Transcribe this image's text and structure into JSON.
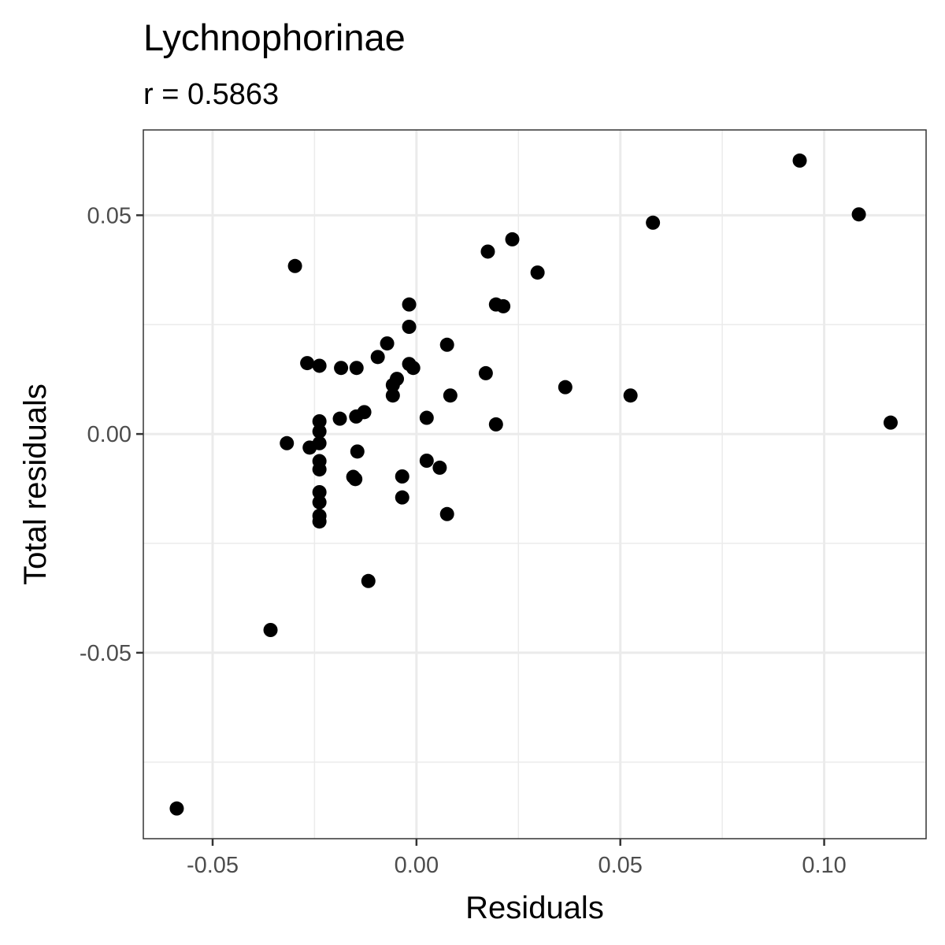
{
  "chart_data": {
    "type": "scatter",
    "title": "Lychnophorinae",
    "subtitle": "r = 0.5863",
    "xlabel": "Residuals",
    "ylabel": "Total residuals",
    "xlim": [
      -0.067,
      0.125
    ],
    "ylim": [
      -0.0925,
      0.0695
    ],
    "x_ticks": [
      -0.05,
      0.0,
      0.05,
      0.1
    ],
    "x_tick_labels": [
      "-0.05",
      "0.00",
      "0.05",
      "0.10"
    ],
    "y_ticks": [
      -0.05,
      0.0,
      0.05
    ],
    "y_tick_labels": [
      "-0.05",
      "0.00",
      "0.05"
    ],
    "x_minor": [
      -0.025,
      0.025,
      0.075
    ],
    "y_minor": [
      -0.075,
      -0.025,
      0.025
    ],
    "grid": true,
    "colors": {
      "point": "#000000",
      "panel_border": "#333333",
      "grid": "#ebebeb",
      "tick_label": "#4d4d4d"
    },
    "points": [
      {
        "x": 0.094,
        "y": 0.0625
      },
      {
        "x": 0.1085,
        "y": 0.0502
      },
      {
        "x": 0.058,
        "y": 0.0483
      },
      {
        "x": 0.0235,
        "y": 0.0445
      },
      {
        "x": 0.0175,
        "y": 0.0417
      },
      {
        "x": 0.0297,
        "y": 0.0369
      },
      {
        "x": -0.0298,
        "y": 0.0384
      },
      {
        "x": -0.0018,
        "y": 0.0296
      },
      {
        "x": 0.0195,
        "y": 0.0296
      },
      {
        "x": 0.0213,
        "y": 0.0292
      },
      {
        "x": -0.0018,
        "y": 0.0245
      },
      {
        "x": 0.0075,
        "y": 0.0204
      },
      {
        "x": -0.0072,
        "y": 0.0207
      },
      {
        "x": -0.0095,
        "y": 0.0176
      },
      {
        "x": -0.0268,
        "y": 0.0162
      },
      {
        "x": -0.0238,
        "y": 0.0156
      },
      {
        "x": -0.0185,
        "y": 0.0151
      },
      {
        "x": -0.0147,
        "y": 0.0151
      },
      {
        "x": -0.0018,
        "y": 0.016
      },
      {
        "x": -0.0008,
        "y": 0.0151
      },
      {
        "x": 0.017,
        "y": 0.0139
      },
      {
        "x": -0.0048,
        "y": 0.0126
      },
      {
        "x": -0.0058,
        "y": 0.0112
      },
      {
        "x": -0.0058,
        "y": 0.0088
      },
      {
        "x": 0.0365,
        "y": 0.0107
      },
      {
        "x": 0.0525,
        "y": 0.0088
      },
      {
        "x": 0.0083,
        "y": 0.0088
      },
      {
        "x": -0.0128,
        "y": 0.005
      },
      {
        "x": -0.0148,
        "y": 0.004
      },
      {
        "x": -0.0188,
        "y": 0.0035
      },
      {
        "x": -0.0238,
        "y": 0.0029
      },
      {
        "x": 0.0025,
        "y": 0.0037
      },
      {
        "x": 0.0195,
        "y": 0.0022
      },
      {
        "x": 0.1163,
        "y": 0.0026
      },
      {
        "x": -0.0238,
        "y": 0.0006
      },
      {
        "x": -0.0318,
        "y": -0.0021
      },
      {
        "x": -0.0262,
        "y": -0.0031
      },
      {
        "x": -0.0238,
        "y": -0.0021
      },
      {
        "x": -0.0145,
        "y": -0.004
      },
      {
        "x": -0.0238,
        "y": -0.0062
      },
      {
        "x": -0.0238,
        "y": -0.0081
      },
      {
        "x": 0.0025,
        "y": -0.0061
      },
      {
        "x": 0.0057,
        "y": -0.0077
      },
      {
        "x": -0.0155,
        "y": -0.0098
      },
      {
        "x": -0.015,
        "y": -0.0103
      },
      {
        "x": -0.0035,
        "y": -0.0097
      },
      {
        "x": -0.0238,
        "y": -0.0133
      },
      {
        "x": -0.0238,
        "y": -0.0156
      },
      {
        "x": -0.0035,
        "y": -0.0145
      },
      {
        "x": -0.0238,
        "y": -0.0187
      },
      {
        "x": -0.0238,
        "y": -0.02
      },
      {
        "x": 0.0075,
        "y": -0.0183
      },
      {
        "x": -0.0118,
        "y": -0.0336
      },
      {
        "x": -0.0358,
        "y": -0.0448
      },
      {
        "x": -0.0588,
        "y": -0.0856
      }
    ]
  }
}
